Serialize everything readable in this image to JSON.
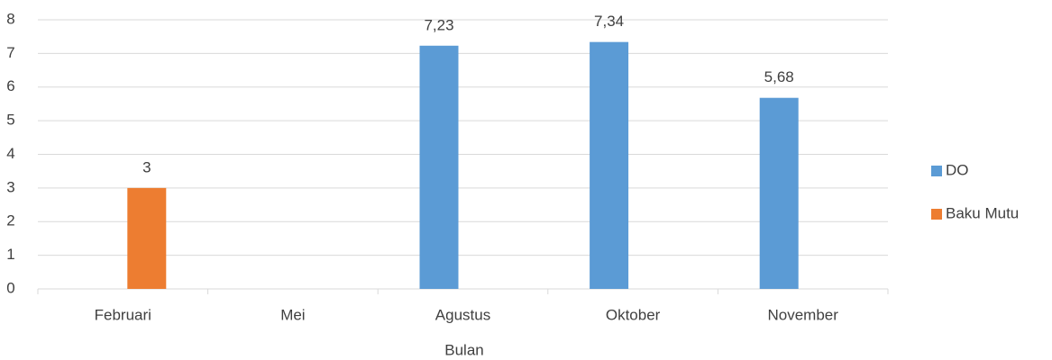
{
  "chart_data": {
    "type": "bar",
    "x_label": "Bulan",
    "categories": [
      "Februari",
      "Mei",
      "Agustus",
      "Oktober",
      "November"
    ],
    "series": [
      {
        "name": "DO",
        "color": "#5b9bd5",
        "values": [
          null,
          null,
          7.23,
          7.34,
          5.68
        ],
        "value_labels": [
          null,
          null,
          "7,23",
          "7,34",
          "5,68"
        ]
      },
      {
        "name": "Baku Mutu",
        "color": "#ed7d31",
        "values": [
          3,
          null,
          null,
          null,
          null
        ]
      }
    ],
    "ylim": [
      0,
      8
    ],
    "yticks": [
      0,
      1,
      2,
      3,
      4,
      5,
      6,
      7,
      8
    ],
    "grid": true,
    "legend": "right"
  }
}
